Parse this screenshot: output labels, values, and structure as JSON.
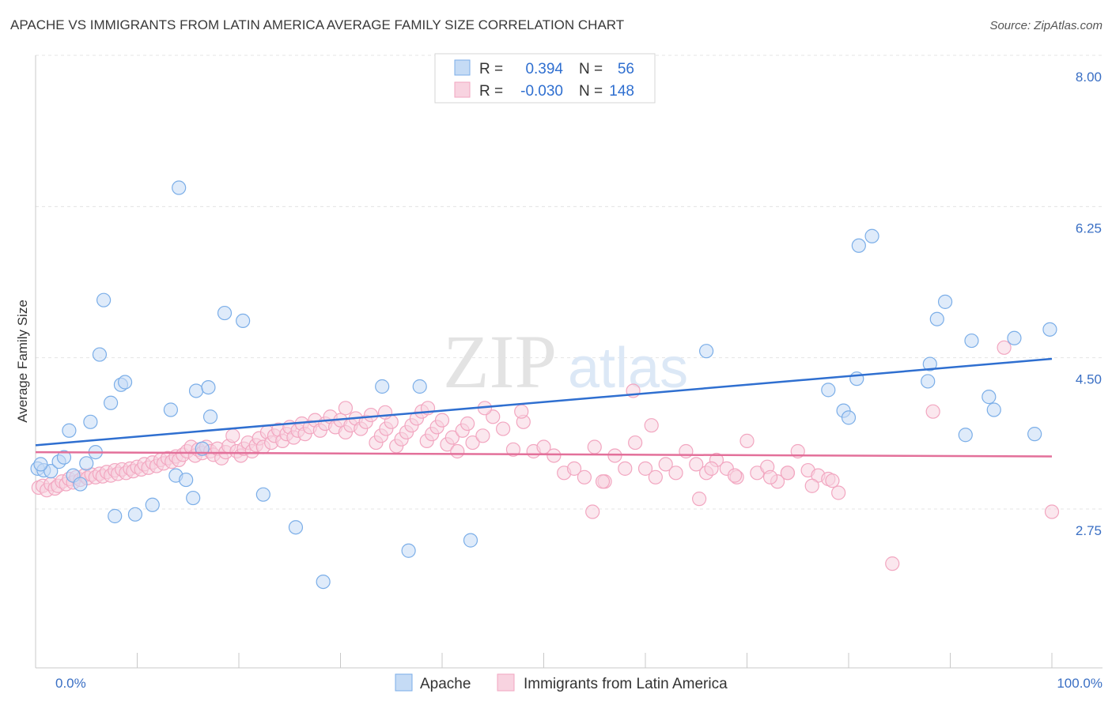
{
  "title": "APACHE VS IMMIGRANTS FROM LATIN AMERICA AVERAGE FAMILY SIZE CORRELATION CHART",
  "source": "Source: ZipAtlas.com",
  "watermark": {
    "zip": "ZIP",
    "atlas": "atlas"
  },
  "legend_top": {
    "rows": [
      {
        "r_label": "R =",
        "r_value": "0.394",
        "n_label": "N =",
        "n_value": "56"
      },
      {
        "r_label": "R =",
        "r_value": "-0.030",
        "n_label": "N =",
        "n_value": "148"
      }
    ]
  },
  "chart_data": {
    "type": "scatter",
    "ylabel": "Average Family Size",
    "x_tick_labels": {
      "min": "0.0%",
      "max": "100.0%"
    },
    "xlim": [
      0,
      100
    ],
    "ylim": [
      1.5,
      8.2
    ],
    "y_ticks": [
      2.75,
      4.5,
      6.25,
      8.0
    ],
    "y_tick_labels": [
      "2.75",
      "4.50",
      "6.25",
      "8.00"
    ],
    "grid": "horizontal dashed",
    "legend_placement": "top-center and bottom-center",
    "series": [
      {
        "name": "Apache",
        "color": "#7baee8",
        "fill": "#c5dbf5",
        "line_color": "#2f6fd0",
        "trend": {
          "x": [
            0,
            100
          ],
          "y": [
            3.57,
            4.57
          ]
        },
        "points": [
          {
            "x": 0.2,
            "y": 3.3
          },
          {
            "x": 0.8,
            "y": 3.28
          },
          {
            "x": 1.5,
            "y": 3.27
          },
          {
            "x": 2.3,
            "y": 3.38
          },
          {
            "x": 2.8,
            "y": 3.43
          },
          {
            "x": 3.3,
            "y": 3.74
          },
          {
            "x": 3.7,
            "y": 3.22
          },
          {
            "x": 4.4,
            "y": 3.12
          },
          {
            "x": 5.0,
            "y": 3.36
          },
          {
            "x": 5.4,
            "y": 3.84
          },
          {
            "x": 5.9,
            "y": 3.49
          },
          {
            "x": 6.3,
            "y": 4.62
          },
          {
            "x": 6.7,
            "y": 5.25
          },
          {
            "x": 7.4,
            "y": 4.06
          },
          {
            "x": 7.8,
            "y": 2.75
          },
          {
            "x": 8.4,
            "y": 4.27
          },
          {
            "x": 8.8,
            "y": 4.3
          },
          {
            "x": 9.8,
            "y": 2.77
          },
          {
            "x": 11.5,
            "y": 2.88
          },
          {
            "x": 13.3,
            "y": 3.98
          },
          {
            "x": 13.8,
            "y": 3.22
          },
          {
            "x": 14.1,
            "y": 6.55
          },
          {
            "x": 14.8,
            "y": 3.17
          },
          {
            "x": 15.5,
            "y": 2.96
          },
          {
            "x": 15.8,
            "y": 4.2
          },
          {
            "x": 16.4,
            "y": 3.53
          },
          {
            "x": 17.0,
            "y": 4.24
          },
          {
            "x": 17.2,
            "y": 3.9
          },
          {
            "x": 18.6,
            "y": 5.1
          },
          {
            "x": 20.4,
            "y": 5.01
          },
          {
            "x": 22.4,
            "y": 3.0
          },
          {
            "x": 25.6,
            "y": 2.62
          },
          {
            "x": 28.3,
            "y": 1.99
          },
          {
            "x": 34.1,
            "y": 4.25
          },
          {
            "x": 36.7,
            "y": 2.35
          },
          {
            "x": 37.8,
            "y": 4.25
          },
          {
            "x": 42.8,
            "y": 2.47
          },
          {
            "x": 66.0,
            "y": 4.66
          },
          {
            "x": 78.0,
            "y": 4.21
          },
          {
            "x": 79.5,
            "y": 3.97
          },
          {
            "x": 80.0,
            "y": 3.89
          },
          {
            "x": 80.8,
            "y": 4.34
          },
          {
            "x": 81.0,
            "y": 5.88
          },
          {
            "x": 82.3,
            "y": 5.99
          },
          {
            "x": 87.8,
            "y": 4.31
          },
          {
            "x": 88.0,
            "y": 4.51
          },
          {
            "x": 88.7,
            "y": 5.03
          },
          {
            "x": 89.5,
            "y": 5.23
          },
          {
            "x": 91.5,
            "y": 3.69
          },
          {
            "x": 92.1,
            "y": 4.78
          },
          {
            "x": 93.8,
            "y": 4.13
          },
          {
            "x": 94.3,
            "y": 3.98
          },
          {
            "x": 96.3,
            "y": 4.81
          },
          {
            "x": 98.3,
            "y": 3.7
          },
          {
            "x": 99.8,
            "y": 4.91
          },
          {
            "x": 0.5,
            "y": 3.35
          }
        ]
      },
      {
        "name": "Immigrants from Latin America",
        "color": "#f2a6c0",
        "fill": "#f8d3e0",
        "line_color": "#e3709a",
        "trend": {
          "x": [
            0,
            100
          ],
          "y": [
            3.49,
            3.44
          ]
        },
        "points": [
          {
            "x": 0.3,
            "y": 3.08
          },
          {
            "x": 0.7,
            "y": 3.1
          },
          {
            "x": 1.1,
            "y": 3.05
          },
          {
            "x": 1.5,
            "y": 3.12
          },
          {
            "x": 1.9,
            "y": 3.07
          },
          {
            "x": 2.2,
            "y": 3.1
          },
          {
            "x": 2.6,
            "y": 3.15
          },
          {
            "x": 3.0,
            "y": 3.12
          },
          {
            "x": 3.3,
            "y": 3.18
          },
          {
            "x": 3.7,
            "y": 3.14
          },
          {
            "x": 4.0,
            "y": 3.2
          },
          {
            "x": 4.4,
            "y": 3.17
          },
          {
            "x": 4.8,
            "y": 3.22
          },
          {
            "x": 5.1,
            "y": 3.19
          },
          {
            "x": 5.5,
            "y": 3.23
          },
          {
            "x": 5.9,
            "y": 3.2
          },
          {
            "x": 6.3,
            "y": 3.24
          },
          {
            "x": 6.6,
            "y": 3.21
          },
          {
            "x": 7.0,
            "y": 3.26
          },
          {
            "x": 7.4,
            "y": 3.22
          },
          {
            "x": 7.8,
            "y": 3.28
          },
          {
            "x": 8.1,
            "y": 3.24
          },
          {
            "x": 8.5,
            "y": 3.29
          },
          {
            "x": 8.9,
            "y": 3.25
          },
          {
            "x": 9.3,
            "y": 3.3
          },
          {
            "x": 9.6,
            "y": 3.27
          },
          {
            "x": 10.0,
            "y": 3.32
          },
          {
            "x": 10.4,
            "y": 3.29
          },
          {
            "x": 10.7,
            "y": 3.35
          },
          {
            "x": 11.1,
            "y": 3.31
          },
          {
            "x": 11.5,
            "y": 3.37
          },
          {
            "x": 11.9,
            "y": 3.33
          },
          {
            "x": 12.3,
            "y": 3.4
          },
          {
            "x": 12.6,
            "y": 3.36
          },
          {
            "x": 13.0,
            "y": 3.42
          },
          {
            "x": 13.4,
            "y": 3.38
          },
          {
            "x": 13.8,
            "y": 3.44
          },
          {
            "x": 14.1,
            "y": 3.4
          },
          {
            "x": 14.5,
            "y": 3.46
          },
          {
            "x": 14.9,
            "y": 3.5
          },
          {
            "x": 15.3,
            "y": 3.55
          },
          {
            "x": 15.7,
            "y": 3.45
          },
          {
            "x": 16.0,
            "y": 3.52
          },
          {
            "x": 16.4,
            "y": 3.48
          },
          {
            "x": 16.8,
            "y": 3.55
          },
          {
            "x": 17.2,
            "y": 3.5
          },
          {
            "x": 17.5,
            "y": 3.46
          },
          {
            "x": 17.9,
            "y": 3.53
          },
          {
            "x": 18.3,
            "y": 3.42
          },
          {
            "x": 18.7,
            "y": 3.49
          },
          {
            "x": 19.0,
            "y": 3.56
          },
          {
            "x": 19.4,
            "y": 3.68
          },
          {
            "x": 19.8,
            "y": 3.5
          },
          {
            "x": 20.2,
            "y": 3.45
          },
          {
            "x": 20.5,
            "y": 3.53
          },
          {
            "x": 20.9,
            "y": 3.6
          },
          {
            "x": 21.3,
            "y": 3.5
          },
          {
            "x": 21.7,
            "y": 3.57
          },
          {
            "x": 22.0,
            "y": 3.65
          },
          {
            "x": 22.4,
            "y": 3.55
          },
          {
            "x": 22.8,
            "y": 3.72
          },
          {
            "x": 23.2,
            "y": 3.6
          },
          {
            "x": 23.5,
            "y": 3.68
          },
          {
            "x": 23.9,
            "y": 3.75
          },
          {
            "x": 24.3,
            "y": 3.62
          },
          {
            "x": 24.7,
            "y": 3.7
          },
          {
            "x": 25.0,
            "y": 3.78
          },
          {
            "x": 25.4,
            "y": 3.66
          },
          {
            "x": 25.8,
            "y": 3.74
          },
          {
            "x": 26.2,
            "y": 3.82
          },
          {
            "x": 26.5,
            "y": 3.7
          },
          {
            "x": 27.0,
            "y": 3.78
          },
          {
            "x": 27.5,
            "y": 3.86
          },
          {
            "x": 28.0,
            "y": 3.74
          },
          {
            "x": 28.5,
            "y": 3.82
          },
          {
            "x": 29.0,
            "y": 3.9
          },
          {
            "x": 29.5,
            "y": 3.78
          },
          {
            "x": 30.0,
            "y": 3.86
          },
          {
            "x": 30.5,
            "y": 3.72
          },
          {
            "x": 31.0,
            "y": 3.8
          },
          {
            "x": 31.5,
            "y": 3.88
          },
          {
            "x": 32.0,
            "y": 3.76
          },
          {
            "x": 32.5,
            "y": 3.84
          },
          {
            "x": 33.0,
            "y": 3.92
          },
          {
            "x": 33.5,
            "y": 3.6
          },
          {
            "x": 34.0,
            "y": 3.68
          },
          {
            "x": 34.5,
            "y": 3.76
          },
          {
            "x": 35.0,
            "y": 3.84
          },
          {
            "x": 35.5,
            "y": 3.56
          },
          {
            "x": 36.0,
            "y": 3.64
          },
          {
            "x": 36.5,
            "y": 3.72
          },
          {
            "x": 37.0,
            "y": 3.8
          },
          {
            "x": 37.5,
            "y": 3.88
          },
          {
            "x": 38.0,
            "y": 3.96
          },
          {
            "x": 38.5,
            "y": 3.62
          },
          {
            "x": 39.0,
            "y": 3.7
          },
          {
            "x": 39.5,
            "y": 3.78
          },
          {
            "x": 40.0,
            "y": 3.86
          },
          {
            "x": 40.5,
            "y": 3.58
          },
          {
            "x": 41.0,
            "y": 3.66
          },
          {
            "x": 41.5,
            "y": 3.5
          },
          {
            "x": 42.0,
            "y": 3.74
          },
          {
            "x": 42.5,
            "y": 3.82
          },
          {
            "x": 43.0,
            "y": 3.6
          },
          {
            "x": 44.0,
            "y": 3.68
          },
          {
            "x": 45.0,
            "y": 3.9
          },
          {
            "x": 46.0,
            "y": 3.76
          },
          {
            "x": 47.0,
            "y": 3.52
          },
          {
            "x": 48.0,
            "y": 3.84
          },
          {
            "x": 49.0,
            "y": 3.5
          },
          {
            "x": 50.0,
            "y": 3.55
          },
          {
            "x": 51.0,
            "y": 3.45
          },
          {
            "x": 52.0,
            "y": 3.25
          },
          {
            "x": 53.0,
            "y": 3.3
          },
          {
            "x": 54.0,
            "y": 3.2
          },
          {
            "x": 55.0,
            "y": 3.55
          },
          {
            "x": 56.0,
            "y": 3.15
          },
          {
            "x": 57.0,
            "y": 3.45
          },
          {
            "x": 58.0,
            "y": 3.3
          },
          {
            "x": 59.0,
            "y": 3.6
          },
          {
            "x": 60.0,
            "y": 3.3
          },
          {
            "x": 61.0,
            "y": 3.2
          },
          {
            "x": 62.0,
            "y": 3.35
          },
          {
            "x": 63.0,
            "y": 3.25
          },
          {
            "x": 64.0,
            "y": 3.5
          },
          {
            "x": 65.0,
            "y": 3.35
          },
          {
            "x": 66.0,
            "y": 3.25
          },
          {
            "x": 67.0,
            "y": 3.4
          },
          {
            "x": 68.0,
            "y": 3.3
          },
          {
            "x": 69.0,
            "y": 3.2
          },
          {
            "x": 70.0,
            "y": 3.62
          },
          {
            "x": 71.0,
            "y": 3.25
          },
          {
            "x": 72.0,
            "y": 3.32
          },
          {
            "x": 73.0,
            "y": 3.15
          },
          {
            "x": 74.0,
            "y": 3.25
          },
          {
            "x": 75.0,
            "y": 3.5
          },
          {
            "x": 76.0,
            "y": 3.28
          },
          {
            "x": 77.0,
            "y": 3.22
          },
          {
            "x": 78.0,
            "y": 3.18
          },
          {
            "x": 79.0,
            "y": 3.02
          },
          {
            "x": 30.5,
            "y": 4.0
          },
          {
            "x": 34.4,
            "y": 3.95
          },
          {
            "x": 38.6,
            "y": 4.0
          },
          {
            "x": 44.2,
            "y": 4.0
          },
          {
            "x": 47.8,
            "y": 3.96
          },
          {
            "x": 58.8,
            "y": 4.2
          },
          {
            "x": 65.3,
            "y": 2.95
          },
          {
            "x": 66.5,
            "y": 3.3
          },
          {
            "x": 68.8,
            "y": 3.22
          },
          {
            "x": 72.3,
            "y": 3.2
          },
          {
            "x": 74.0,
            "y": 3.25
          },
          {
            "x": 76.4,
            "y": 3.1
          },
          {
            "x": 78.4,
            "y": 3.16
          },
          {
            "x": 88.3,
            "y": 3.96
          },
          {
            "x": 95.3,
            "y": 4.7
          },
          {
            "x": 84.3,
            "y": 2.2
          },
          {
            "x": 100.0,
            "y": 2.8
          },
          {
            "x": 54.8,
            "y": 2.8
          },
          {
            "x": 55.8,
            "y": 3.15
          },
          {
            "x": 60.6,
            "y": 3.8
          }
        ]
      }
    ]
  }
}
